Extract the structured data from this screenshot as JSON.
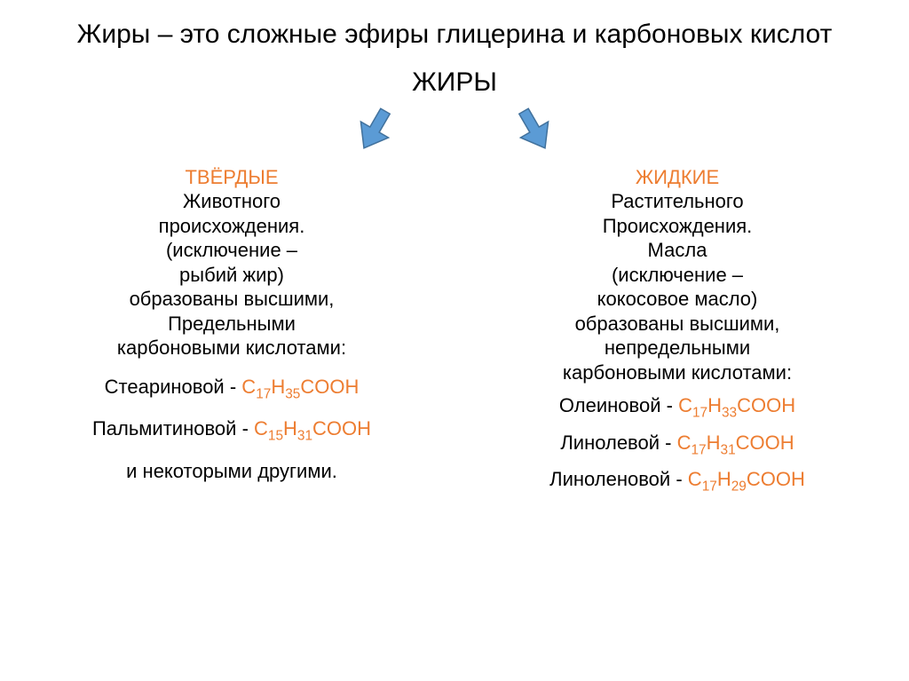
{
  "title": "Жиры – это сложные эфиры глицерина и карбоновых кислот",
  "root_label": "ЖИРЫ",
  "arrow": {
    "fill": "#5b9bd5",
    "stroke": "#41719c",
    "stroke_width": 1.5
  },
  "branches": {
    "left": {
      "heading": "ТВЁРДЫЕ",
      "lines": [
        "Животного",
        "происхождения.",
        "(исключение –",
        "рыбий жир)",
        "образованы высшими,",
        "Предельными",
        "карбоновыми кислотами:"
      ],
      "acids": [
        {
          "name": "Стеариновой",
          "formula_html": "C<sub>17</sub>H<sub>35</sub>COOH"
        },
        {
          "name": "Пальмитиновой",
          "formula_html": "C<sub>15</sub>H<sub>31</sub>COOH"
        }
      ],
      "footer": "и некоторыми другими."
    },
    "right": {
      "heading": "ЖИДКИЕ",
      "lines": [
        "Растительного",
        "Происхождения.",
        "Масла",
        "(исключение –",
        "кокосовое масло)",
        "образованы высшими,",
        "непредельными",
        "карбоновыми кислотами:"
      ],
      "acids": [
        {
          "name": "Олеиновой",
          "formula_html": "C<sub>17</sub>H<sub>33</sub>COOH"
        },
        {
          "name": "Линолевой",
          "formula_html": "C<sub>17</sub>H<sub>31</sub>COOH"
        },
        {
          "name": "Линоленовой",
          "formula_html": "C<sub>17</sub>H<sub>29</sub>COOH"
        }
      ]
    }
  },
  "colors": {
    "accent": "#ed7d31",
    "text": "#000000",
    "background": "#ffffff"
  },
  "typography": {
    "title_fontsize": 30,
    "body_fontsize": 22,
    "font_family": "Arial"
  }
}
